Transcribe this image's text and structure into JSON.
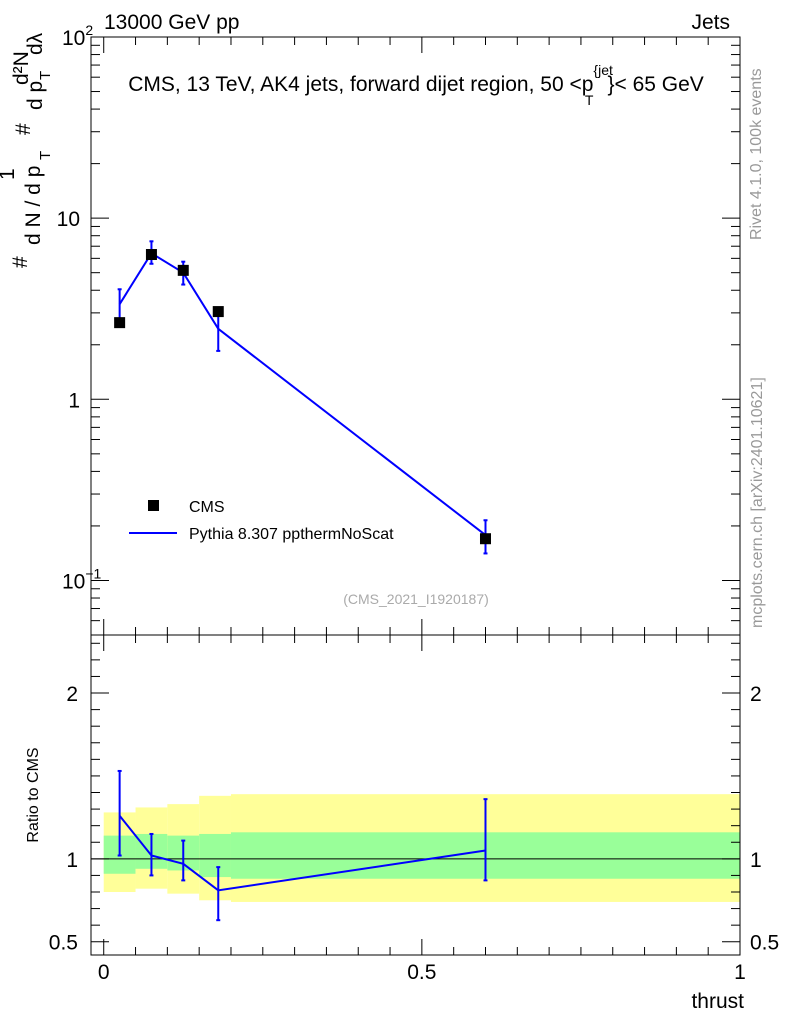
{
  "header": {
    "left": "13000 GeV pp",
    "right": "Jets"
  },
  "side_labels": {
    "rivet": "Rivet 4.1.0,  100k events",
    "mcplots": "mcplots.cern.ch [arXiv:2401.10621]"
  },
  "chart_data": [
    {
      "type": "line",
      "title": "CMS, 13 TeV, AK4 jets, forward dijet region, 50 <p_T^{jet}< 65 GeV",
      "watermark": "(CMS_2021_I1920187)",
      "xlabel": "",
      "ylabel": "1/(dN/dpT) d²N/(dpT dλ)",
      "yscale": "log",
      "ylim": [
        0.05,
        100
      ],
      "xlim": [
        -0.02,
        1.0
      ],
      "yticks": [
        {
          "v": 0.1,
          "base": "10",
          "exp": "−1"
        },
        {
          "v": 1,
          "label": "1"
        },
        {
          "v": 10,
          "label": "10"
        },
        {
          "v": 100,
          "base": "10",
          "exp": "2"
        }
      ],
      "legend_position": "lower-left",
      "series": [
        {
          "name": "CMS",
          "kind": "data",
          "color": "#000000",
          "x": [
            0.025,
            0.075,
            0.125,
            0.18,
            0.6
          ],
          "y": [
            2.65,
            6.3,
            5.15,
            3.05,
            0.17
          ]
        },
        {
          "name": "Pythia 8.307 ppthermNoScat",
          "kind": "mc",
          "color": "#0000ff",
          "x": [
            0.025,
            0.075,
            0.125,
            0.18,
            0.6
          ],
          "y": [
            3.35,
            6.4,
            5.0,
            2.45,
            0.178
          ],
          "err_lo": [
            2.6,
            5.6,
            4.3,
            1.85,
            0.141
          ],
          "err_hi": [
            4.05,
            7.45,
            5.75,
            3.0,
            0.215
          ]
        }
      ]
    },
    {
      "type": "line",
      "title": "",
      "xlabel": "thrust",
      "ylabel": "Ratio to CMS",
      "ylim": [
        0.42,
        2.35
      ],
      "xlim": [
        -0.02,
        1.0
      ],
      "xticks": [
        0,
        0.5,
        1
      ],
      "xtick_labels": [
        "0",
        "0.5",
        "1"
      ],
      "yticks": [
        0.5,
        1,
        2
      ],
      "ytick_labels": [
        "0.5",
        "1",
        "2"
      ],
      "uncertainty_bands": {
        "x_edges": [
          0.0,
          0.05,
          0.1,
          0.15,
          0.2,
          1.0
        ],
        "inner_lo": [
          0.91,
          0.94,
          0.93,
          0.89,
          0.88
        ],
        "inner_hi": [
          1.14,
          1.15,
          1.14,
          1.15,
          1.16
        ],
        "outer_lo": [
          0.8,
          0.82,
          0.79,
          0.75,
          0.74
        ],
        "outer_hi": [
          1.28,
          1.31,
          1.33,
          1.38,
          1.39
        ],
        "inner_color": "#99ff99",
        "outer_color": "#ffff99"
      },
      "series": [
        {
          "name": "Pythia 8.307 ppthermNoScat / CMS",
          "color": "#0000ff",
          "x": [
            0.025,
            0.075,
            0.125,
            0.18,
            0.6
          ],
          "y": [
            1.26,
            1.02,
            0.97,
            0.81,
            1.05
          ],
          "err_lo": [
            1.02,
            0.9,
            0.87,
            0.63,
            0.87
          ],
          "err_hi": [
            1.53,
            1.15,
            1.11,
            0.95,
            1.36
          ]
        }
      ]
    }
  ]
}
